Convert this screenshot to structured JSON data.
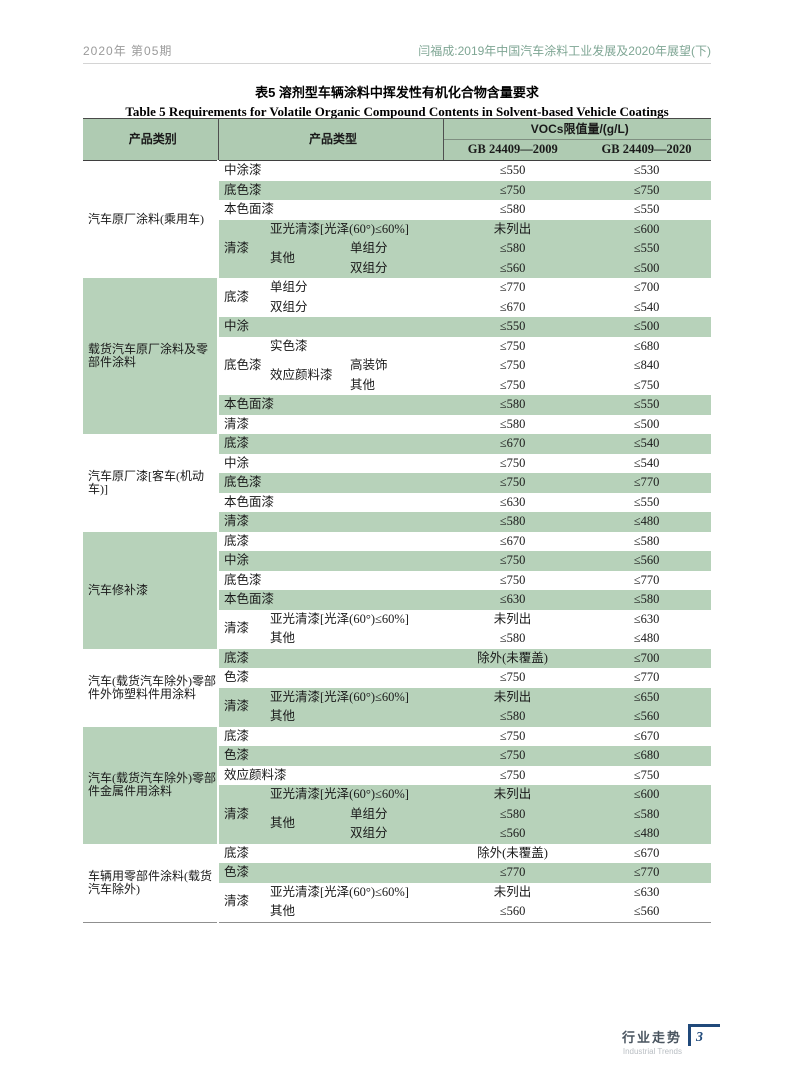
{
  "header": {
    "issue": "2020年 第05期",
    "article_title": "闫福成:2019年中国汽车涂料工业发展及2020年展望(下)"
  },
  "title": {
    "zh": "表5  溶剂型车辆涂料中挥发性有机化合物含量要求",
    "en": "Table 5  Requirements for Volatile Organic Compound Contents in Solvent-based Vehicle Coatings"
  },
  "table": {
    "header": {
      "category": "产品类别",
      "type": "产品类型",
      "voc": "VOCs限值量/(g/L)",
      "gb2009": "GB 24409—2009",
      "gb2020": "GB 24409—2020"
    },
    "rows": [
      {
        "bg": "w",
        "cells": [
          {
            "t": "汽车原厂涂料(乘用车)",
            "rs": 6,
            "k": "cat",
            "catbg": "w"
          },
          {
            "t": "中涂漆",
            "cs": 3,
            "k": "t"
          },
          {
            "t": "≤550",
            "k": "v"
          },
          {
            "t": "≤530",
            "k": "v"
          }
        ]
      },
      {
        "bg": "g",
        "cells": [
          {
            "t": "底色漆",
            "cs": 3,
            "k": "t"
          },
          {
            "t": "≤750",
            "k": "v"
          },
          {
            "t": "≤750",
            "k": "v"
          }
        ]
      },
      {
        "bg": "w",
        "cells": [
          {
            "t": "本色面漆",
            "cs": 3,
            "k": "t"
          },
          {
            "t": "≤580",
            "k": "v"
          },
          {
            "t": "≤550",
            "k": "v"
          }
        ]
      },
      {
        "bg": "g",
        "cells": [
          {
            "t": "清漆",
            "rs": 3,
            "k": "t"
          },
          {
            "t": "亚光清漆[光泽(60°)≤60%]",
            "cs": 2,
            "k": "t"
          },
          {
            "t": "未列出",
            "k": "v"
          },
          {
            "t": "≤600",
            "k": "v"
          }
        ]
      },
      {
        "bg": "g",
        "cells": [
          {
            "t": "其他",
            "rs": 2,
            "k": "t"
          },
          {
            "t": "单组分",
            "k": "t"
          },
          {
            "t": "≤580",
            "k": "v"
          },
          {
            "t": "≤550",
            "k": "v"
          }
        ]
      },
      {
        "bg": "g",
        "cells": [
          {
            "t": "双组分",
            "k": "t"
          },
          {
            "t": "≤560",
            "k": "v"
          },
          {
            "t": "≤500",
            "k": "v"
          }
        ]
      },
      {
        "bg": "w",
        "cells": [
          {
            "t": "载货汽车原厂涂料及零部件涂料",
            "rs": 8,
            "k": "cat",
            "catbg": "g"
          },
          {
            "t": "底漆",
            "rs": 2,
            "k": "t"
          },
          {
            "t": "单组分",
            "cs": 2,
            "k": "t"
          },
          {
            "t": "≤770",
            "k": "v"
          },
          {
            "t": "≤700",
            "k": "v"
          }
        ]
      },
      {
        "bg": "w",
        "cells": [
          {
            "t": "双组分",
            "cs": 2,
            "k": "t"
          },
          {
            "t": "≤670",
            "k": "v"
          },
          {
            "t": "≤540",
            "k": "v"
          }
        ]
      },
      {
        "bg": "g",
        "cells": [
          {
            "t": "中涂",
            "cs": 3,
            "k": "t"
          },
          {
            "t": "≤550",
            "k": "v"
          },
          {
            "t": "≤500",
            "k": "v"
          }
        ]
      },
      {
        "bg": "w",
        "cells": [
          {
            "t": "底色漆",
            "rs": 3,
            "k": "t"
          },
          {
            "t": "实色漆",
            "cs": 2,
            "k": "t"
          },
          {
            "t": "≤750",
            "k": "v"
          },
          {
            "t": "≤680",
            "k": "v"
          }
        ]
      },
      {
        "bg": "w",
        "cells": [
          {
            "t": "效应颜料漆",
            "rs": 2,
            "k": "t"
          },
          {
            "t": "高装饰",
            "k": "t"
          },
          {
            "t": "≤750",
            "k": "v"
          },
          {
            "t": "≤840",
            "k": "v"
          }
        ]
      },
      {
        "bg": "w",
        "cells": [
          {
            "t": "其他",
            "k": "t"
          },
          {
            "t": "≤750",
            "k": "v"
          },
          {
            "t": "≤750",
            "k": "v"
          }
        ]
      },
      {
        "bg": "g",
        "cells": [
          {
            "t": "本色面漆",
            "cs": 3,
            "k": "t"
          },
          {
            "t": "≤580",
            "k": "v"
          },
          {
            "t": "≤550",
            "k": "v"
          }
        ]
      },
      {
        "bg": "w",
        "cells": [
          {
            "t": "清漆",
            "cs": 3,
            "k": "t"
          },
          {
            "t": "≤580",
            "k": "v"
          },
          {
            "t": "≤500",
            "k": "v"
          }
        ]
      },
      {
        "bg": "g",
        "cells": [
          {
            "t": "汽车原厂漆[客车(机动车)]",
            "rs": 5,
            "k": "cat",
            "catbg": "w"
          },
          {
            "t": "底漆",
            "cs": 3,
            "k": "t"
          },
          {
            "t": "≤670",
            "k": "v"
          },
          {
            "t": "≤540",
            "k": "v"
          }
        ]
      },
      {
        "bg": "w",
        "cells": [
          {
            "t": "中涂",
            "cs": 3,
            "k": "t"
          },
          {
            "t": "≤750",
            "k": "v"
          },
          {
            "t": "≤540",
            "k": "v"
          }
        ]
      },
      {
        "bg": "g",
        "cells": [
          {
            "t": "底色漆",
            "cs": 3,
            "k": "t"
          },
          {
            "t": "≤750",
            "k": "v"
          },
          {
            "t": "≤770",
            "k": "v"
          }
        ]
      },
      {
        "bg": "w",
        "cells": [
          {
            "t": "本色面漆",
            "cs": 3,
            "k": "t"
          },
          {
            "t": "≤630",
            "k": "v"
          },
          {
            "t": "≤550",
            "k": "v"
          }
        ]
      },
      {
        "bg": "g",
        "cells": [
          {
            "t": "清漆",
            "cs": 3,
            "k": "t"
          },
          {
            "t": "≤580",
            "k": "v"
          },
          {
            "t": "≤480",
            "k": "v"
          }
        ]
      },
      {
        "bg": "w",
        "cells": [
          {
            "t": "汽车修补漆",
            "rs": 6,
            "k": "cat",
            "catbg": "g"
          },
          {
            "t": "底漆",
            "cs": 3,
            "k": "t"
          },
          {
            "t": "≤670",
            "k": "v"
          },
          {
            "t": "≤580",
            "k": "v"
          }
        ]
      },
      {
        "bg": "g",
        "cells": [
          {
            "t": "中涂",
            "cs": 3,
            "k": "t"
          },
          {
            "t": "≤750",
            "k": "v"
          },
          {
            "t": "≤560",
            "k": "v"
          }
        ]
      },
      {
        "bg": "w",
        "cells": [
          {
            "t": "底色漆",
            "cs": 3,
            "k": "t"
          },
          {
            "t": "≤750",
            "k": "v"
          },
          {
            "t": "≤770",
            "k": "v"
          }
        ]
      },
      {
        "bg": "g",
        "cells": [
          {
            "t": "本色面漆",
            "cs": 3,
            "k": "t"
          },
          {
            "t": "≤630",
            "k": "v"
          },
          {
            "t": "≤580",
            "k": "v"
          }
        ]
      },
      {
        "bg": "w",
        "cells": [
          {
            "t": "清漆",
            "rs": 2,
            "k": "t"
          },
          {
            "t": "亚光清漆[光泽(60°)≤60%]",
            "cs": 2,
            "k": "t"
          },
          {
            "t": "未列出",
            "k": "v"
          },
          {
            "t": "≤630",
            "k": "v"
          }
        ]
      },
      {
        "bg": "w",
        "cells": [
          {
            "t": "其他",
            "cs": 2,
            "k": "t"
          },
          {
            "t": "≤580",
            "k": "v"
          },
          {
            "t": "≤480",
            "k": "v"
          }
        ]
      },
      {
        "bg": "g",
        "cells": [
          {
            "t": "汽车(载货汽车除外)零部件外饰塑料件用涂料",
            "rs": 4,
            "k": "cat",
            "catbg": "w"
          },
          {
            "t": "底漆",
            "cs": 3,
            "k": "t"
          },
          {
            "t": "除外(未覆盖)",
            "k": "v"
          },
          {
            "t": "≤700",
            "k": "v"
          }
        ]
      },
      {
        "bg": "w",
        "cells": [
          {
            "t": "色漆",
            "cs": 3,
            "k": "t"
          },
          {
            "t": "≤750",
            "k": "v"
          },
          {
            "t": "≤770",
            "k": "v"
          }
        ]
      },
      {
        "bg": "g",
        "cells": [
          {
            "t": "清漆",
            "rs": 2,
            "k": "t"
          },
          {
            "t": "亚光清漆[光泽(60°)≤60%]",
            "cs": 2,
            "k": "t"
          },
          {
            "t": "未列出",
            "k": "v"
          },
          {
            "t": "≤650",
            "k": "v"
          }
        ]
      },
      {
        "bg": "g",
        "cells": [
          {
            "t": "其他",
            "cs": 2,
            "k": "t"
          },
          {
            "t": "≤580",
            "k": "v"
          },
          {
            "t": "≤560",
            "k": "v"
          }
        ]
      },
      {
        "bg": "w",
        "cells": [
          {
            "t": "汽车(载货汽车除外)零部件金属件用涂料",
            "rs": 6,
            "k": "cat",
            "catbg": "g"
          },
          {
            "t": "底漆",
            "cs": 3,
            "k": "t"
          },
          {
            "t": "≤750",
            "k": "v"
          },
          {
            "t": "≤670",
            "k": "v"
          }
        ]
      },
      {
        "bg": "g",
        "cells": [
          {
            "t": "色漆",
            "cs": 3,
            "k": "t"
          },
          {
            "t": "≤750",
            "k": "v"
          },
          {
            "t": "≤680",
            "k": "v"
          }
        ]
      },
      {
        "bg": "w",
        "cells": [
          {
            "t": "效应颜料漆",
            "cs": 3,
            "k": "t"
          },
          {
            "t": "≤750",
            "k": "v"
          },
          {
            "t": "≤750",
            "k": "v"
          }
        ]
      },
      {
        "bg": "g",
        "cells": [
          {
            "t": "清漆",
            "rs": 3,
            "k": "t"
          },
          {
            "t": "亚光清漆[光泽(60°)≤60%]",
            "cs": 2,
            "k": "t"
          },
          {
            "t": "未列出",
            "k": "v"
          },
          {
            "t": "≤600",
            "k": "v"
          }
        ]
      },
      {
        "bg": "g",
        "cells": [
          {
            "t": "其他",
            "rs": 2,
            "k": "t"
          },
          {
            "t": "单组分",
            "k": "t"
          },
          {
            "t": "≤580",
            "k": "v"
          },
          {
            "t": "≤580",
            "k": "v"
          }
        ]
      },
      {
        "bg": "g",
        "cells": [
          {
            "t": "双组分",
            "k": "t"
          },
          {
            "t": "≤560",
            "k": "v"
          },
          {
            "t": "≤480",
            "k": "v"
          }
        ]
      },
      {
        "bg": "w",
        "cells": [
          {
            "t": "车辆用零部件涂料(载货汽车除外)",
            "rs": 4,
            "k": "cat",
            "catbg": "w"
          },
          {
            "t": "底漆",
            "cs": 3,
            "k": "t"
          },
          {
            "t": "除外(未覆盖)",
            "k": "v"
          },
          {
            "t": "≤670",
            "k": "v"
          }
        ]
      },
      {
        "bg": "g",
        "cells": [
          {
            "t": "色漆",
            "cs": 3,
            "k": "t"
          },
          {
            "t": "≤770",
            "k": "v"
          },
          {
            "t": "≤770",
            "k": "v"
          }
        ]
      },
      {
        "bg": "w",
        "cells": [
          {
            "t": "清漆",
            "rs": 2,
            "k": "t"
          },
          {
            "t": "亚光清漆[光泽(60°)≤60%]",
            "cs": 2,
            "k": "t"
          },
          {
            "t": "未列出",
            "k": "v"
          },
          {
            "t": "≤630",
            "k": "v"
          }
        ]
      },
      {
        "bg": "w",
        "cells": [
          {
            "t": "其他",
            "cs": 2,
            "k": "t"
          },
          {
            "t": "≤560",
            "k": "v"
          },
          {
            "t": "≤560",
            "k": "v"
          }
        ]
      }
    ]
  },
  "footer": {
    "section_zh": "行业走势",
    "section_en": "Industrial Trends",
    "page_number": "3"
  },
  "colors": {
    "table_header_green": "#afcbb2",
    "row_stripe_green": "#b7d2ba",
    "accent_navy": "#20497a",
    "running_head_green": "#7fa694",
    "running_head_gray": "#9b9b9b"
  }
}
